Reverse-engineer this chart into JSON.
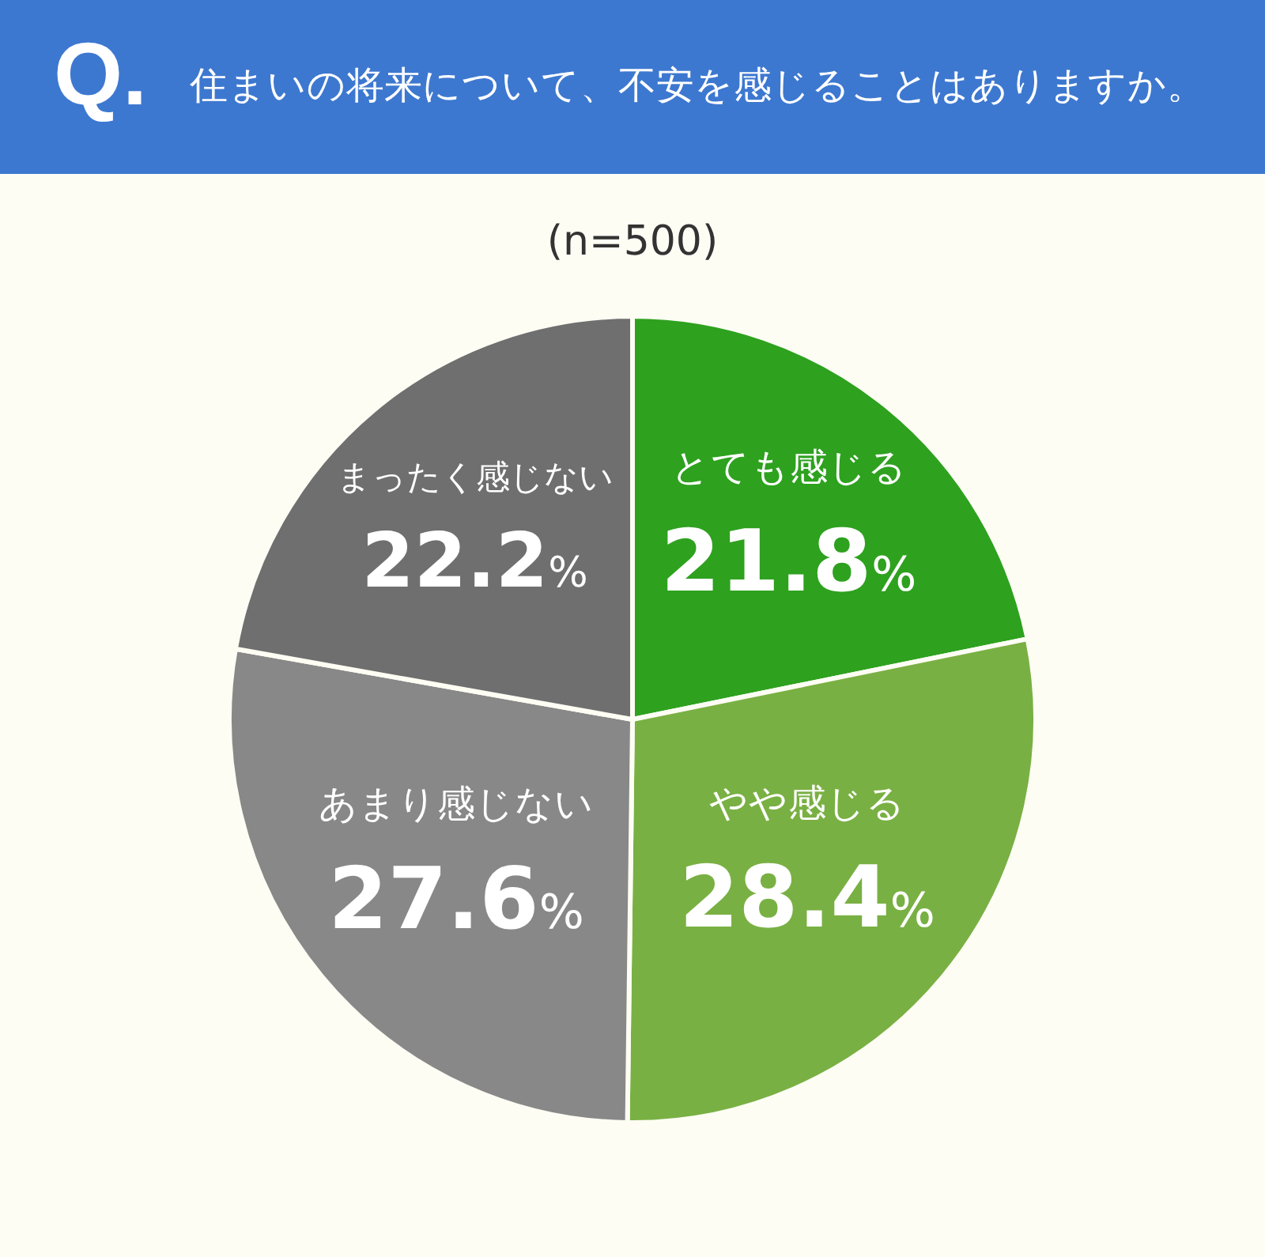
{
  "chart_data": {
    "type": "pie",
    "title": "住まいの将来について、不安を感じることはありますか。",
    "subtitle": "(n=500)",
    "annotations": [
      "Q."
    ],
    "categories": [
      "とても感じる",
      "やや感じる",
      "あまり感じない",
      "まったく感じない"
    ],
    "values": [
      21.8,
      28.4,
      27.6,
      22.2
    ],
    "value_labels": [
      "21.8%",
      "28.4%",
      "27.6%",
      "22.2%"
    ],
    "colors": [
      "#2ea11f",
      "#79b043",
      "#888888",
      "#6f6f6f"
    ],
    "legend": false
  }
}
